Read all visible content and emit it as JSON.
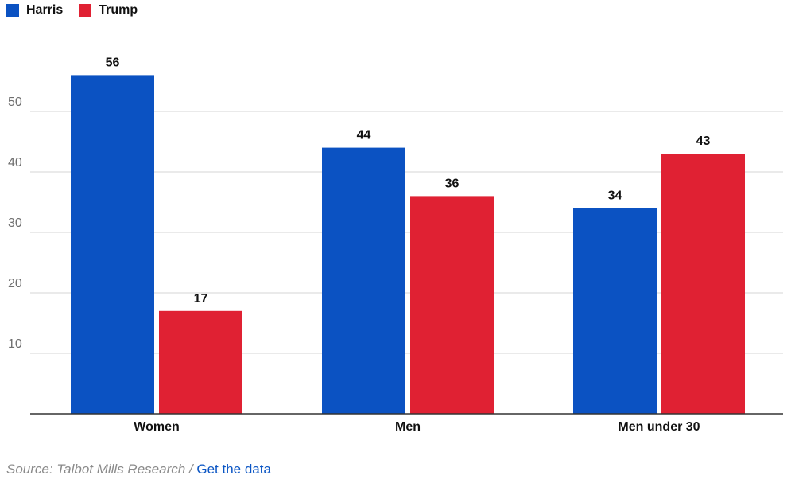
{
  "legend": {
    "items": [
      {
        "label": "Harris",
        "color": "#0b52c2"
      },
      {
        "label": "Trump",
        "color": "#e02133"
      }
    ]
  },
  "source": {
    "text": "Source: Talbot Mills Research",
    "separator": " / ",
    "link_label": "Get the data",
    "link_color": "#0a55c4"
  },
  "chart_data": {
    "type": "bar",
    "categories": [
      "Women",
      "Men",
      "Men under 30"
    ],
    "series": [
      {
        "name": "Harris",
        "values": [
          56,
          44,
          34
        ],
        "color": "#0b52c2"
      },
      {
        "name": "Trump",
        "values": [
          17,
          36,
          43
        ],
        "color": "#e02133"
      }
    ],
    "title": "",
    "xlabel": "",
    "ylabel": "",
    "ylim": [
      0,
      60
    ],
    "yticks": [
      10,
      20,
      30,
      40,
      50
    ],
    "grid": true,
    "legend_position": "top-left",
    "data_labels": true
  }
}
